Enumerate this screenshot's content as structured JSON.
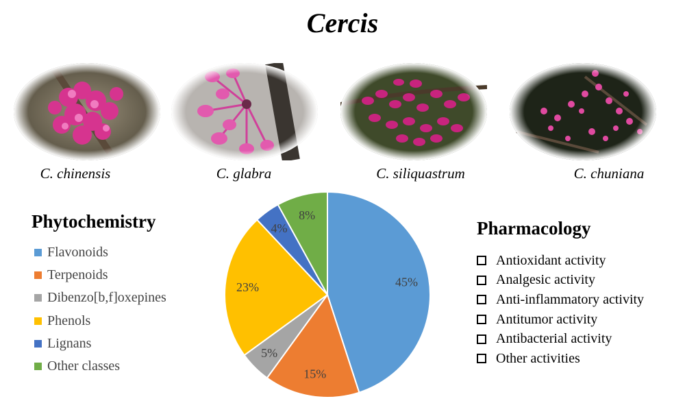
{
  "title": "Cercis",
  "species": [
    {
      "name": "C. chinensis",
      "icon": "redbud-flower-photo"
    },
    {
      "name": "C. glabra",
      "icon": "redbud-flower-photo"
    },
    {
      "name": "C. siliquastrum",
      "icon": "redbud-flower-photo"
    },
    {
      "name": "C. chuniana",
      "icon": "redbud-flower-photo"
    }
  ],
  "phytochemistry": {
    "heading": "Phytochemistry"
  },
  "pharmacology": {
    "heading": "Pharmacology",
    "activities": [
      "Antioxidant activity",
      "Analgesic activity",
      "Anti-inflammatory activity",
      "Antitumor activity",
      "Antibacterial activity",
      "Other activities"
    ]
  },
  "chart_data": {
    "type": "pie",
    "categories": [
      "Flavonoids",
      "Terpenoids",
      "Dibenzo[b,f]oxepines",
      "Phenols",
      "Lignans",
      "Other classes"
    ],
    "values": [
      45,
      15,
      5,
      23,
      4,
      8
    ],
    "labels": [
      "45%",
      "15%",
      "5%",
      "23%",
      "4%",
      "8%"
    ],
    "colors": [
      "#5B9BD5",
      "#ED7D31",
      "#A5A5A5",
      "#FFC000",
      "#4472C4",
      "#70AD47"
    ],
    "legend_position": "left"
  }
}
